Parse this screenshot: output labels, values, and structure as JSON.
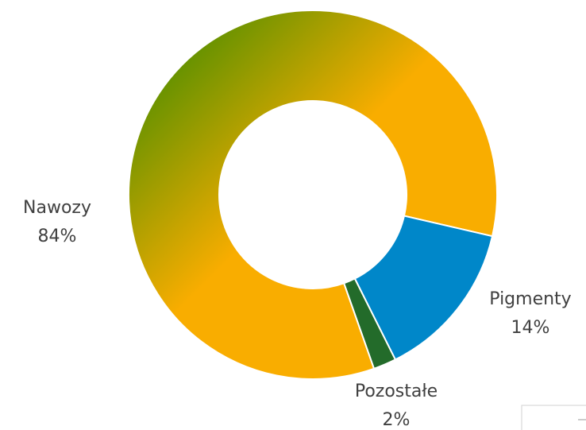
{
  "chart_data": {
    "type": "donut",
    "categories": [
      "Nawozy",
      "Pigmenty",
      "Pozostałe"
    ],
    "values": [
      84,
      14,
      2
    ],
    "value_labels": [
      "84%",
      "14%",
      "2%"
    ],
    "colors": [
      "#f9ad00",
      "#0087c9",
      "#236b2a"
    ]
  }
}
